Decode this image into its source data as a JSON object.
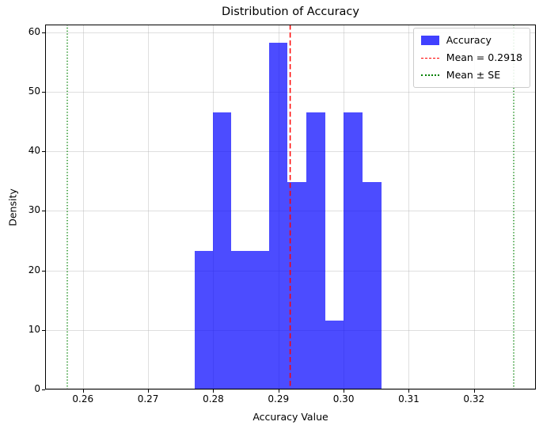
{
  "chart_data": {
    "type": "bar",
    "subtype": "histogram-density",
    "title": "Distribution of Accuracy",
    "xlabel": "Accuracy Value",
    "ylabel": "Density",
    "xlim": [
      0.2542,
      0.3295
    ],
    "ylim": [
      0,
      61.3
    ],
    "grid": true,
    "grid_color": "#b0b0b0",
    "xticks": [
      0.26,
      0.27,
      0.28,
      0.29,
      0.3,
      0.31,
      0.32
    ],
    "xtick_labels": [
      "0.26",
      "0.27",
      "0.28",
      "0.29",
      "0.30",
      "0.31",
      "0.32"
    ],
    "yticks": [
      0,
      10,
      20,
      30,
      40,
      50,
      60
    ],
    "ytick_labels": [
      "0",
      "10",
      "20",
      "30",
      "40",
      "50",
      "60"
    ],
    "histogram": {
      "bin_edges": [
        0.2771,
        0.28,
        0.2828,
        0.2857,
        0.2886,
        0.2914,
        0.2943,
        0.2972,
        0.3,
        0.3029,
        0.3058
      ],
      "densities": [
        23.3,
        46.6,
        23.3,
        23.3,
        58.2,
        34.9,
        46.6,
        11.6,
        46.6,
        34.9
      ],
      "color": "#0000ff",
      "alpha": 0.7
    },
    "mean_line": {
      "x": 0.2918,
      "color": "#ff0000",
      "style": "dashed"
    },
    "se_lines": {
      "xs": [
        0.2576,
        0.3261
      ],
      "color": "#008000",
      "style": "dotted"
    },
    "legend": {
      "position": "upper-right",
      "items": [
        {
          "label": "Accuracy",
          "swatch": "patch",
          "color": "#0000ff"
        },
        {
          "label": "Mean = 0.2918",
          "swatch": "dashed-line",
          "color": "#ff0000"
        },
        {
          "label": "Mean ± SE",
          "swatch": "dotted-line",
          "color": "#008000"
        }
      ]
    }
  }
}
